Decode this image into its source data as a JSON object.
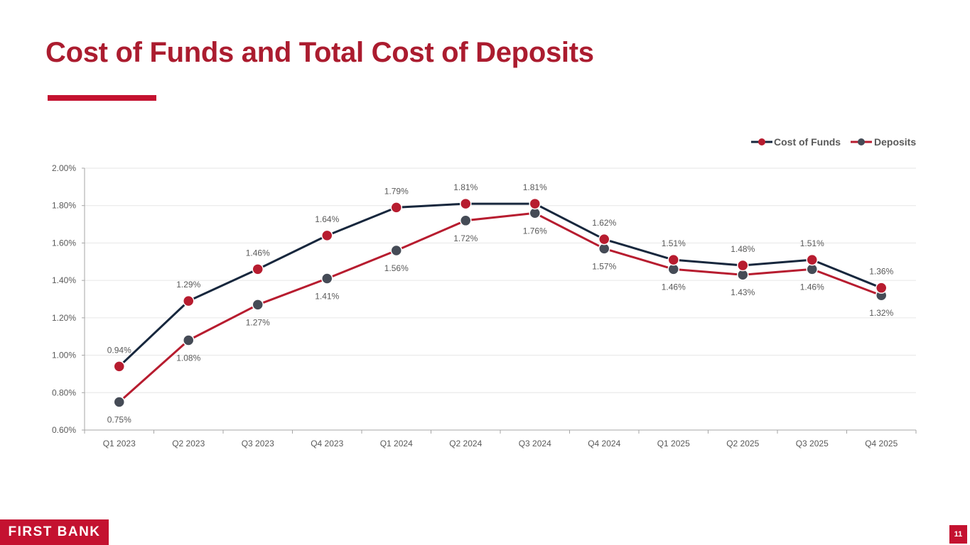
{
  "slide": {
    "title": "Cost of Funds and Total Cost of Deposits",
    "brand": "FIRST BANK",
    "page_number": "11"
  },
  "colors": {
    "brand_red": "#c41230",
    "title_red": "#ab1c2f",
    "navy_line": "#17273d",
    "red_line": "#b71c2f",
    "red_marker": "#b71c2f",
    "gray_marker": "#454b56",
    "grid": "#e6e6e6",
    "axis": "#a6a6a6"
  },
  "chart_data": {
    "type": "line",
    "title": "",
    "xlabel": "",
    "ylabel": "",
    "categories": [
      "Q1 2023",
      "Q2 2023",
      "Q3 2023",
      "Q4 2023",
      "Q1 2024",
      "Q2 2024",
      "Q3 2024",
      "Q4 2024",
      "Q1 2025",
      "Q2 2025",
      "Q3 2025",
      "Q4 2025"
    ],
    "ylim": [
      0.6,
      2.0
    ],
    "yticks": [
      0.6,
      0.8,
      1.0,
      1.2,
      1.4,
      1.6,
      1.8,
      2.0
    ],
    "ytick_labels": [
      "0.60%",
      "0.80%",
      "1.00%",
      "1.20%",
      "1.40%",
      "1.60%",
      "1.80%",
      "2.00%"
    ],
    "grid": true,
    "legend_position": "top-right",
    "series": [
      {
        "name": "Cost of Funds",
        "values": [
          0.94,
          1.29,
          1.46,
          1.64,
          1.79,
          1.81,
          1.81,
          1.62,
          1.51,
          1.48,
          1.51,
          1.36
        ],
        "labels": [
          "0.94%",
          "1.29%",
          "1.46%",
          "1.64%",
          "1.79%",
          "1.81%",
          "1.81%",
          "1.62%",
          "1.51%",
          "1.48%",
          "1.51%",
          "1.36%"
        ],
        "label_position": "above",
        "line_color": "#17273d",
        "marker_color": "#b71c2f"
      },
      {
        "name": "Deposits",
        "values": [
          0.75,
          1.08,
          1.27,
          1.41,
          1.56,
          1.72,
          1.76,
          1.57,
          1.46,
          1.43,
          1.46,
          1.32
        ],
        "labels": [
          "0.75%",
          "1.08%",
          "1.27%",
          "1.41%",
          "1.56%",
          "1.72%",
          "1.76%",
          "1.57%",
          "1.46%",
          "1.43%",
          "1.46%",
          "1.32%"
        ],
        "label_position": "below",
        "line_color": "#b71c2f",
        "marker_color": "#454b56"
      }
    ]
  }
}
